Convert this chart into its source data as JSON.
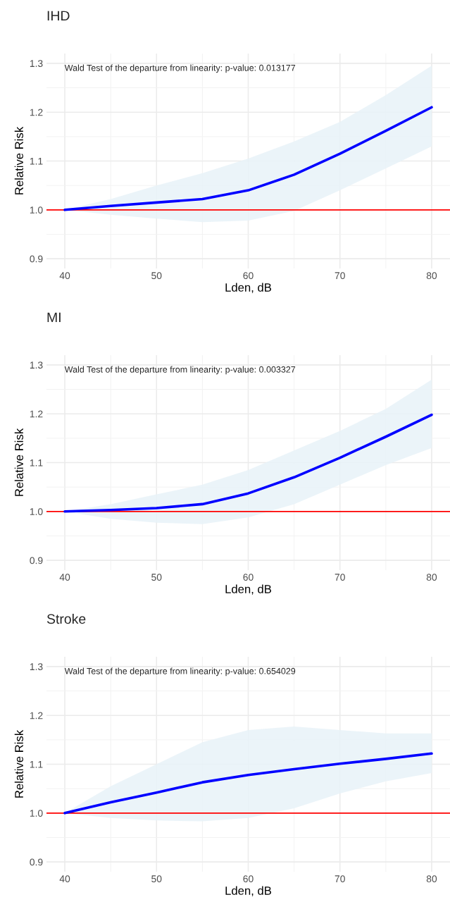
{
  "chart_data": [
    {
      "type": "line",
      "title": "IHD",
      "xlabel": "Lden, dB",
      "ylabel": "Relative Risk",
      "annotations": [
        "Wald Test of the departure from linearity: p-value: 0.013177"
      ],
      "xlim": [
        38,
        82
      ],
      "ylim": [
        0.88,
        1.32
      ],
      "xticks": [
        40,
        50,
        60,
        70,
        80
      ],
      "yticks": [
        {
          "value": 0.9,
          "label": "0.9"
        },
        {
          "value": 1.0,
          "label": "1.0"
        },
        {
          "value": 1.1,
          "label": "1.1"
        },
        {
          "value": 1.2,
          "label": "1.2"
        },
        {
          "value": 1.3,
          "label": "1.3"
        }
      ],
      "grid": true,
      "legend": false,
      "x": [
        40,
        45,
        50,
        55,
        60,
        65,
        70,
        75,
        80
      ],
      "series": [
        {
          "color": "#0000ff",
          "values": [
            1.0,
            1.008,
            1.015,
            1.022,
            1.04,
            1.072,
            1.115,
            1.162,
            1.21
          ],
          "lower": [
            1.0,
            0.99,
            0.982,
            0.975,
            0.978,
            0.998,
            1.04,
            1.085,
            1.13
          ],
          "upper": [
            1.0,
            1.022,
            1.05,
            1.075,
            1.105,
            1.14,
            1.18,
            1.235,
            1.295
          ]
        }
      ],
      "ref_lines": [
        {
          "axis": "y",
          "value": 1.0,
          "color": "#ff0000"
        }
      ]
    },
    {
      "type": "line",
      "title": "MI",
      "xlabel": "Lden, dB",
      "ylabel": "Relative Risk",
      "annotations": [
        "Wald Test of the departure from linearity: p-value: 0.003327"
      ],
      "xlim": [
        38,
        82
      ],
      "ylim": [
        0.88,
        1.32
      ],
      "xticks": [
        40,
        50,
        60,
        70,
        80
      ],
      "yticks": [
        {
          "value": 0.9,
          "label": "0.9"
        },
        {
          "value": 1.0,
          "label": "1.0"
        },
        {
          "value": 1.1,
          "label": "1.1"
        },
        {
          "value": 1.2,
          "label": "1.2"
        },
        {
          "value": 1.3,
          "label": "1.3"
        }
      ],
      "grid": true,
      "legend": false,
      "x": [
        40,
        45,
        50,
        55,
        60,
        65,
        70,
        75,
        80
      ],
      "series": [
        {
          "color": "#0000ff",
          "values": [
            1.0,
            1.003,
            1.007,
            1.015,
            1.037,
            1.07,
            1.11,
            1.153,
            1.198
          ],
          "lower": [
            1.0,
            0.985,
            0.977,
            0.974,
            0.988,
            1.015,
            1.055,
            1.095,
            1.13
          ],
          "upper": [
            1.0,
            1.015,
            1.035,
            1.055,
            1.085,
            1.125,
            1.165,
            1.21,
            1.27
          ]
        }
      ],
      "ref_lines": [
        {
          "axis": "y",
          "value": 1.0,
          "color": "#ff0000"
        }
      ]
    },
    {
      "type": "line",
      "title": "Stroke",
      "xlabel": "Lden, dB",
      "ylabel": "Relative Risk",
      "annotations": [
        "Wald Test of the departure from linearity: p-value: 0.654029"
      ],
      "xlim": [
        38,
        82
      ],
      "ylim": [
        0.88,
        1.32
      ],
      "xticks": [
        40,
        50,
        60,
        70,
        80
      ],
      "yticks": [
        {
          "value": 0.9,
          "label": "0.9"
        },
        {
          "value": 1.0,
          "label": "1.0"
        },
        {
          "value": 1.1,
          "label": "1.1"
        },
        {
          "value": 1.2,
          "label": "1.2"
        },
        {
          "value": 1.3,
          "label": "1.3"
        }
      ],
      "grid": true,
      "legend": false,
      "x": [
        40,
        45,
        50,
        55,
        60,
        65,
        70,
        75,
        80
      ],
      "series": [
        {
          "color": "#0000ff",
          "values": [
            1.0,
            1.022,
            1.042,
            1.063,
            1.078,
            1.09,
            1.101,
            1.111,
            1.122
          ],
          "lower": [
            1.0,
            0.99,
            0.985,
            0.983,
            0.99,
            1.01,
            1.04,
            1.065,
            1.082
          ],
          "upper": [
            1.0,
            1.055,
            1.1,
            1.145,
            1.17,
            1.177,
            1.17,
            1.163,
            1.163
          ]
        }
      ],
      "ref_lines": [
        {
          "axis": "y",
          "value": 1.0,
          "color": "#ff0000"
        }
      ]
    }
  ]
}
